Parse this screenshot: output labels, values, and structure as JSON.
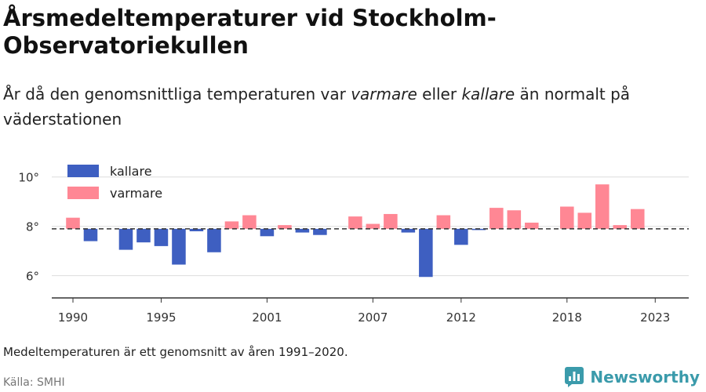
{
  "header": {
    "title": "Årsmedeltemperaturer vid Stockholm-Observatoriekullen",
    "subtitle_parts": [
      "År då den genomsnittliga temperaturen var ",
      "varmare",
      " eller ",
      "kallare",
      " än normalt på väderstationen"
    ]
  },
  "footer": {
    "note": "Medeltemperaturen är ett genomsnitt av åren 1991–2020.",
    "source": "Källa: SMHI",
    "brand": "Newsworthy"
  },
  "colors": {
    "kallare": "#3e5fc1",
    "varmare": "#ff8794",
    "baseline": "#333333",
    "grid": "#dddddd",
    "brand": "#3b9bab"
  },
  "chart_data": {
    "type": "bar",
    "baseline": 7.9,
    "ylim": [
      5.1,
      10.5
    ],
    "yticks": [
      6,
      8,
      10
    ],
    "ytick_labels": [
      "6°",
      "8°",
      "10°"
    ],
    "xlim": [
      1988.8,
      2024.9
    ],
    "xticks": [
      1990,
      1995,
      2001,
      2007,
      2012,
      2018,
      2023
    ],
    "legend": [
      {
        "key": "kallare",
        "label": "kallare"
      },
      {
        "key": "varmare",
        "label": "varmare"
      }
    ],
    "legend_position": "top-left",
    "grid": true,
    "series": [
      {
        "year": 1990,
        "value": 8.35
      },
      {
        "year": 1991,
        "value": 7.4
      },
      {
        "year": 1992,
        "value": null
      },
      {
        "year": 1993,
        "value": 7.05
      },
      {
        "year": 1994,
        "value": 7.35
      },
      {
        "year": 1995,
        "value": 7.2
      },
      {
        "year": 1996,
        "value": 6.45
      },
      {
        "year": 1997,
        "value": 7.8
      },
      {
        "year": 1998,
        "value": 6.95
      },
      {
        "year": 1999,
        "value": 8.2
      },
      {
        "year": 2000,
        "value": 8.45
      },
      {
        "year": 2001,
        "value": 7.6
      },
      {
        "year": 2002,
        "value": 8.05
      },
      {
        "year": 2003,
        "value": 7.75
      },
      {
        "year": 2004,
        "value": 7.65
      },
      {
        "year": 2005,
        "value": null
      },
      {
        "year": 2006,
        "value": 8.4
      },
      {
        "year": 2007,
        "value": 8.1
      },
      {
        "year": 2008,
        "value": 8.5
      },
      {
        "year": 2009,
        "value": 7.75
      },
      {
        "year": 2010,
        "value": 5.95
      },
      {
        "year": 2011,
        "value": 8.45
      },
      {
        "year": 2012,
        "value": 7.25
      },
      {
        "year": 2013,
        "value": 7.85
      },
      {
        "year": 2014,
        "value": 8.75
      },
      {
        "year": 2015,
        "value": 8.65
      },
      {
        "year": 2016,
        "value": 8.15
      },
      {
        "year": 2017,
        "value": null
      },
      {
        "year": 2018,
        "value": 8.8
      },
      {
        "year": 2019,
        "value": 8.55
      },
      {
        "year": 2020,
        "value": 9.7
      },
      {
        "year": 2021,
        "value": 8.05
      },
      {
        "year": 2022,
        "value": 8.7
      }
    ]
  }
}
